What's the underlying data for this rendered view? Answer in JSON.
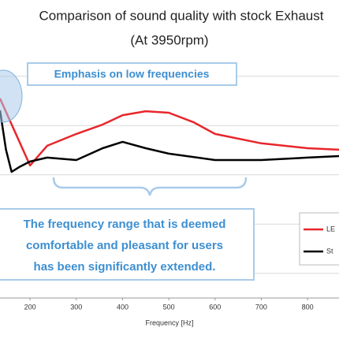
{
  "chart_data": {
    "type": "line",
    "title": "Comparison of sound quality with stock Exhaust",
    "subtitle": "(At 3950rpm)",
    "x_label": "Frequency [Hz]",
    "xlim": [
      135,
      868
    ],
    "xticks": [
      200,
      300,
      400,
      500,
      600,
      700,
      800
    ],
    "ylim": [
      0,
      6
    ],
    "ygrid": [
      0.5,
      1.5,
      2.5,
      3.5,
      4.5
    ],
    "grid": true,
    "series": [
      {
        "name": "LE",
        "color": "#e8262b",
        "x": [
          135,
          200,
          237,
          300,
          357,
          400,
          450,
          500,
          553,
          600,
          700,
          800,
          868
        ],
        "values": [
          4.05,
          2.69,
          3.09,
          3.33,
          3.52,
          3.71,
          3.79,
          3.76,
          3.57,
          3.33,
          3.14,
          3.04,
          3.01
        ]
      },
      {
        "name": "St",
        "color": "#000000",
        "x": [
          135,
          148,
          160,
          177,
          200,
          237,
          300,
          357,
          400,
          450,
          500,
          600,
          700,
          800,
          868
        ],
        "values": [
          3.81,
          3.01,
          2.56,
          2.66,
          2.77,
          2.85,
          2.8,
          3.04,
          3.17,
          3.04,
          2.93,
          2.8,
          2.8,
          2.85,
          2.88
        ]
      }
    ],
    "annotations": [
      "Emphasis on low frequencies",
      "The frequency range that is deemed",
      "comfortable and pleasant for users",
      "has been significantly extended."
    ]
  }
}
